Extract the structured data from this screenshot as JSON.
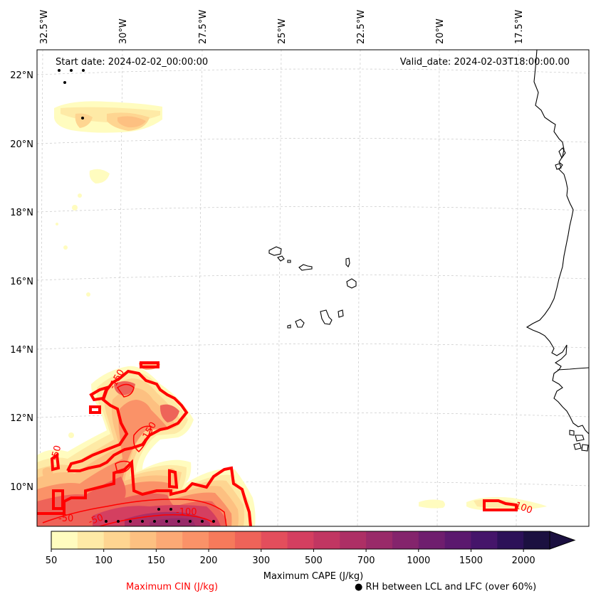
{
  "map": {
    "start_date": "Start date: 2024-02-02_00:00:00",
    "valid_date": "Valid_date: 2024-02-03T18:00:00.00",
    "lon_labels": [
      "32.5°W",
      "30°W",
      "27.5°W",
      "25°W",
      "22.5°W",
      "20°W",
      "17.5°W"
    ],
    "lat_labels": [
      "22°N",
      "20°N",
      "18°N",
      "16°N",
      "14°N",
      "12°N",
      "10°N"
    ],
    "cin_contour_labels": [
      "-50",
      "-150",
      "-50",
      "-100",
      "-50",
      "-150",
      "-100"
    ],
    "gridlines": true
  },
  "colorbar": {
    "tick_labels": [
      "50",
      "100",
      "150",
      "200",
      "300",
      "500",
      "700",
      "1000",
      "1500",
      "2000"
    ],
    "colors": [
      "#fffcbf",
      "#feeaa6",
      "#fed591",
      "#fdc081",
      "#fca975",
      "#fa9268",
      "#f67a5b",
      "#ee6359",
      "#e34e5c",
      "#d43f60",
      "#c13662",
      "#ad2f65",
      "#992a69",
      "#84246c",
      "#6f1e6e",
      "#5b196e",
      "#45156a",
      "#2c1158",
      "#1b1040"
    ],
    "label": "Maximum CAPE (J/kg)"
  },
  "legend": {
    "cin": "Maximum CIN (J/kg)",
    "cin_color": "#ff0000",
    "rh": "RH between LCL and LFC (over 60%)"
  }
}
